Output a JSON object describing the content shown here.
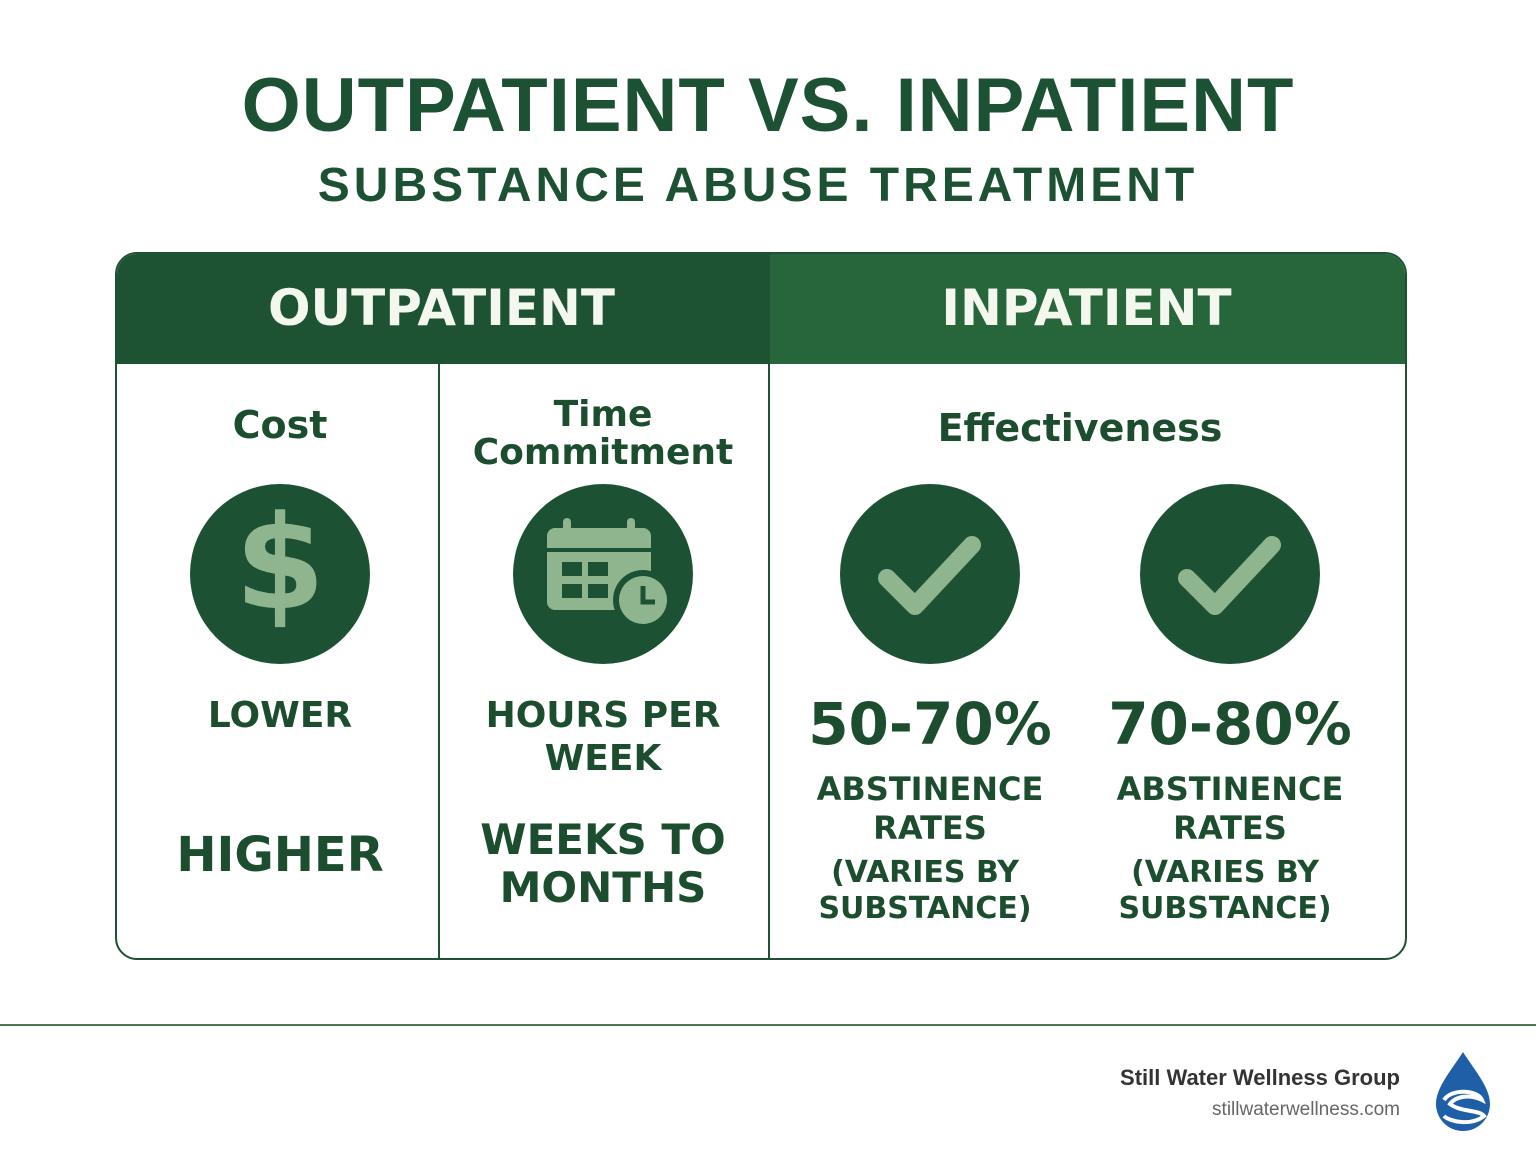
{
  "header": {
    "title": "OUTPATIENT VS. INPATIENT",
    "subtitle": "SUBSTANCE ABUSE TREATMENT"
  },
  "table": {
    "headers": [
      "OUTPATIENT",
      "INPATIENT"
    ],
    "cost": {
      "label": "Cost",
      "rows": [
        "LOWER",
        "HIGHER"
      ]
    },
    "time": {
      "label": "Time Commitment",
      "rows": [
        "HOURS PER WEEK",
        "WEEKS TO MONTHS"
      ]
    },
    "effectiveness": {
      "label": "Effectiveness",
      "items": [
        {
          "rate": "50-70%",
          "caption": "ABSTINENCE RATES",
          "note": "(VARIES BY SUBSTANCE)"
        },
        {
          "rate": "70-80%",
          "caption": "ABSTINENCE RATES",
          "note": "(VARIES BY SUBSTANCE)"
        }
      ]
    }
  },
  "footer": {
    "brand": "Still Water Wellness Group",
    "url": "stillwaterwellness.com"
  }
}
